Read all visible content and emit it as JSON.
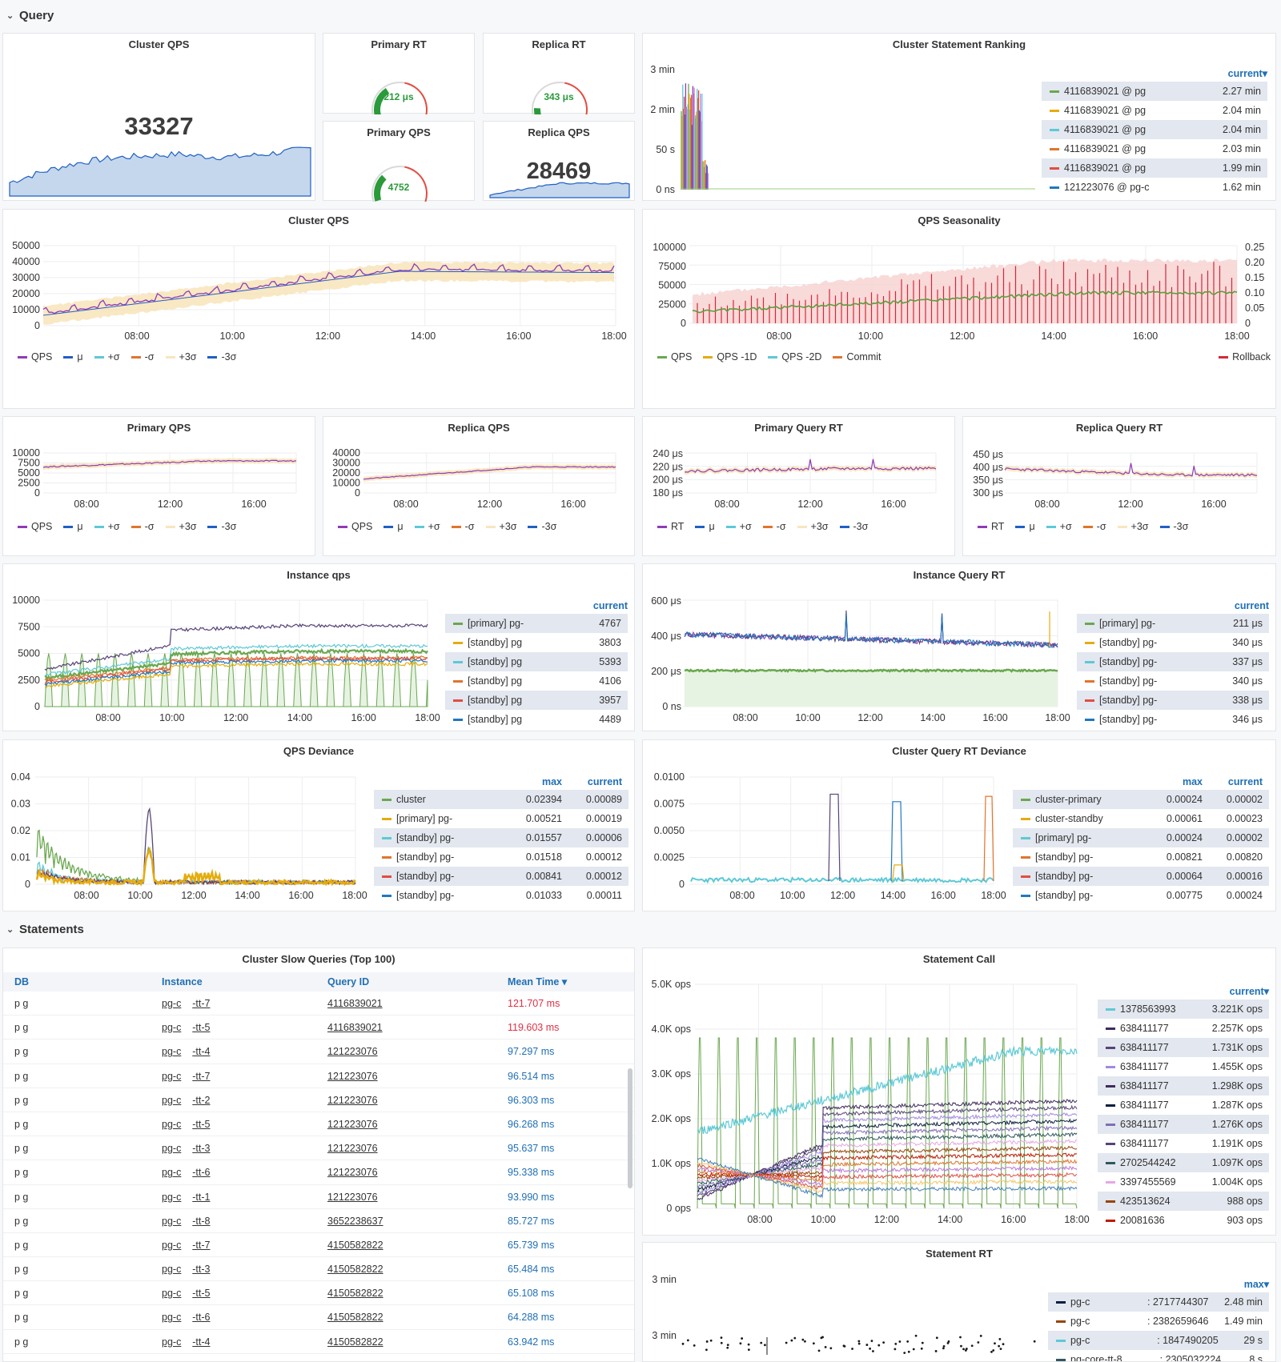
{
  "rows": {
    "query": "Query",
    "statements": "Statements"
  },
  "stat_cluster_qps": {
    "title": "Cluster QPS",
    "value": "33327"
  },
  "gauge_primary_rt": {
    "title": "Primary RT",
    "value": "212 μs",
    "level": 0.35
  },
  "gauge_replica_rt": {
    "title": "Replica RT",
    "value": "343 μs",
    "level": 0.1
  },
  "gauge_primary_qps": {
    "title": "Primary QPS",
    "value": "4752",
    "level": 0.3
  },
  "stat_replica_qps": {
    "title": "Replica QPS",
    "value": "28469"
  },
  "ranking": {
    "title": "Cluster Statement Ranking",
    "header": "current▾",
    "yticks": [
      "3 min",
      "2 min",
      "50 s",
      "0 ns"
    ],
    "rows": [
      {
        "name": "4116839021 @ pg",
        "value": "2.27 min",
        "color": "#6aa84f"
      },
      {
        "name": "4116839021 @ pg",
        "value": "2.04 min",
        "color": "#e5ac0e"
      },
      {
        "name": "4116839021 @ pg",
        "value": "2.04 min",
        "color": "#5dc9d6"
      },
      {
        "name": "4116839021 @ pg",
        "value": "2.03 min",
        "color": "#e0752d"
      },
      {
        "name": "4116839021 @ pg",
        "value": "1.99 min",
        "color": "#e24d42"
      },
      {
        "name": "121223076 @ pg-c",
        "value": "1.62 min",
        "color": "#1f78c1"
      }
    ]
  },
  "cluster_qps_chart": {
    "title": "Cluster QPS",
    "yticks": [
      "50000",
      "40000",
      "30000",
      "20000",
      "10000",
      "0"
    ],
    "xticks": [
      "08:00",
      "10:00",
      "12:00",
      "14:00",
      "16:00",
      "18:00"
    ],
    "legend": [
      {
        "name": "QPS",
        "color": "#8f3bb8"
      },
      {
        "name": "μ",
        "color": "#1f60c4"
      },
      {
        "name": "+σ",
        "color": "#5dc9d6"
      },
      {
        "name": "-σ",
        "color": "#e0752d"
      },
      {
        "name": "+3σ",
        "color": "#f7e6bf"
      },
      {
        "name": "-3σ",
        "color": "#1f60c4"
      }
    ]
  },
  "seasonality": {
    "title": "QPS Seasonality",
    "yticks_left": [
      "100000",
      "75000",
      "50000",
      "25000",
      "0"
    ],
    "yticks_right": [
      "0.25",
      "0.20",
      "0.15",
      "0.10",
      "0.05",
      "0"
    ],
    "xticks": [
      "08:00",
      "10:00",
      "12:00",
      "14:00",
      "16:00",
      "18:00"
    ],
    "legend": [
      {
        "name": "QPS",
        "color": "#6aa84f"
      },
      {
        "name": "QPS -1D",
        "color": "#e5ac0e"
      },
      {
        "name": "QPS -2D",
        "color": "#5dc9d6"
      },
      {
        "name": "Commit",
        "color": "#e0752d"
      }
    ],
    "legend_right": {
      "name": "Rollback",
      "color": "#d6283a"
    }
  },
  "primary_qps": {
    "title": "Primary QPS",
    "yticks": [
      "10000",
      "7500",
      "5000",
      "2500",
      "0"
    ],
    "xticks": [
      "08:00",
      "12:00",
      "16:00"
    ],
    "legend": [
      {
        "name": "QPS",
        "color": "#8f3bb8"
      },
      {
        "name": "μ",
        "color": "#1f60c4"
      },
      {
        "name": "+σ",
        "color": "#5dc9d6"
      },
      {
        "name": "-σ",
        "color": "#e0752d"
      },
      {
        "name": "+3σ",
        "color": "#f7e6bf"
      },
      {
        "name": "-3σ",
        "color": "#1f60c4"
      }
    ]
  },
  "replica_qps": {
    "title": "Replica QPS",
    "yticks": [
      "40000",
      "30000",
      "20000",
      "10000",
      "0"
    ],
    "xticks": [
      "08:00",
      "12:00",
      "16:00"
    ],
    "legend": [
      {
        "name": "QPS",
        "color": "#8f3bb8"
      },
      {
        "name": "μ",
        "color": "#1f60c4"
      },
      {
        "name": "+σ",
        "color": "#5dc9d6"
      },
      {
        "name": "-σ",
        "color": "#e0752d"
      },
      {
        "name": "+3σ",
        "color": "#f7e6bf"
      },
      {
        "name": "-3σ",
        "color": "#1f60c4"
      }
    ]
  },
  "primary_rt": {
    "title": "Primary Query RT",
    "yticks": [
      "240 μs",
      "220 μs",
      "200 μs",
      "180 μs"
    ],
    "xticks": [
      "08:00",
      "12:00",
      "16:00"
    ],
    "legend": [
      {
        "name": "RT",
        "color": "#8f3bb8"
      },
      {
        "name": "μ",
        "color": "#1f60c4"
      },
      {
        "name": "+σ",
        "color": "#5dc9d6"
      },
      {
        "name": "-σ",
        "color": "#e0752d"
      },
      {
        "name": "+3σ",
        "color": "#f7e6bf"
      },
      {
        "name": "-3σ",
        "color": "#1f60c4"
      }
    ]
  },
  "replica_rt": {
    "title": "Replica Query RT",
    "yticks": [
      "450 μs",
      "400 μs",
      "350 μs",
      "300 μs"
    ],
    "xticks": [
      "08:00",
      "12:00",
      "16:00"
    ],
    "legend": [
      {
        "name": "RT",
        "color": "#8f3bb8"
      },
      {
        "name": "μ",
        "color": "#1f60c4"
      },
      {
        "name": "+σ",
        "color": "#5dc9d6"
      },
      {
        "name": "-σ",
        "color": "#e0752d"
      },
      {
        "name": "+3σ",
        "color": "#f7e6bf"
      },
      {
        "name": "-3σ",
        "color": "#1f60c4"
      }
    ]
  },
  "instance_qps": {
    "title": "Instance qps",
    "header": "current",
    "yticks": [
      "10000",
      "7500",
      "5000",
      "2500",
      "0"
    ],
    "xticks": [
      "08:00",
      "10:00",
      "12:00",
      "14:00",
      "16:00",
      "18:00"
    ],
    "rows": [
      {
        "name": "[primary] pg-",
        "value": "4767",
        "color": "#6aa84f"
      },
      {
        "name": "[standby] pg",
        "value": "3803",
        "color": "#e5ac0e"
      },
      {
        "name": "[standby] pg",
        "value": "5393",
        "color": "#5dc9d6"
      },
      {
        "name": "[standby] pg",
        "value": "4106",
        "color": "#e0752d"
      },
      {
        "name": "[standby] pg",
        "value": "3957",
        "color": "#e24d42"
      },
      {
        "name": "[standby] pg",
        "value": "4489",
        "color": "#1f78c1"
      }
    ]
  },
  "instance_rt": {
    "title": "Instance Query RT",
    "header": "current",
    "yticks": [
      "600 μs",
      "400 μs",
      "200 μs",
      "0 ns"
    ],
    "xticks": [
      "08:00",
      "10:00",
      "12:00",
      "14:00",
      "16:00",
      "18:00"
    ],
    "rows": [
      {
        "name": "[primary] pg-",
        "value": "211 μs",
        "color": "#6aa84f"
      },
      {
        "name": "[standby] pg-",
        "value": "340 μs",
        "color": "#e5ac0e"
      },
      {
        "name": "[standby] pg-",
        "value": "337 μs",
        "color": "#5dc9d6"
      },
      {
        "name": "[standby] pg-",
        "value": "340 μs",
        "color": "#e0752d"
      },
      {
        "name": "[standby] pg-",
        "value": "338 μs",
        "color": "#e24d42"
      },
      {
        "name": "[standby] pg-",
        "value": "346 μs",
        "color": "#1f78c1"
      }
    ]
  },
  "qps_deviance": {
    "title": "QPS Deviance",
    "header_max": "max",
    "header_current": "current",
    "yticks": [
      "0.04",
      "0.03",
      "0.02",
      "0.01",
      "0"
    ],
    "xticks": [
      "08:00",
      "10:00",
      "12:00",
      "14:00",
      "16:00",
      "18:00"
    ],
    "rows": [
      {
        "name": "cluster",
        "max": "0.02394",
        "current": "0.00089",
        "color": "#6aa84f"
      },
      {
        "name": "[primary] pg-",
        "max": "0.00521",
        "current": "0.00019",
        "color": "#e5ac0e"
      },
      {
        "name": "[standby] pg-",
        "max": "0.01557",
        "current": "0.00006",
        "color": "#5dc9d6"
      },
      {
        "name": "[standby] pg-",
        "max": "0.01518",
        "current": "0.00012",
        "color": "#e0752d"
      },
      {
        "name": "[standby] pg-",
        "max": "0.00841",
        "current": "0.00012",
        "color": "#e24d42"
      },
      {
        "name": "[standby] pg-",
        "max": "0.01033",
        "current": "0.00011",
        "color": "#1f78c1"
      }
    ]
  },
  "rt_deviance": {
    "title": "Cluster Query RT Deviance",
    "header_max": "max",
    "header_current": "current",
    "yticks": [
      "0.0100",
      "0.0075",
      "0.0050",
      "0.0025",
      "0"
    ],
    "xticks": [
      "08:00",
      "10:00",
      "12:00",
      "14:00",
      "16:00",
      "18:00"
    ],
    "rows": [
      {
        "name": "cluster-primary",
        "max": "0.00024",
        "current": "0.00002",
        "color": "#6aa84f"
      },
      {
        "name": "cluster-standby",
        "max": "0.00061",
        "current": "0.00023",
        "color": "#e5ac0e"
      },
      {
        "name": "[primary] pg-",
        "max": "0.00024",
        "current": "0.00002",
        "color": "#5dc9d6"
      },
      {
        "name": "[standby] pg-",
        "max": "0.00821",
        "current": "0.00820",
        "color": "#e0752d"
      },
      {
        "name": "[standby] pg-",
        "max": "0.00064",
        "current": "0.00016",
        "color": "#e24d42"
      },
      {
        "name": "[standby] pg-",
        "max": "0.00775",
        "current": "0.00024",
        "color": "#1f78c1"
      }
    ]
  },
  "slow_queries": {
    "title": "Cluster Slow Queries (Top 100)",
    "headers": {
      "db": "DB",
      "instance": "Instance",
      "query_id": "Query ID",
      "mean_time": "Mean Time ▾"
    },
    "rows": [
      {
        "db": "p    g",
        "inst_a": "pg-c",
        "inst_b": "-tt-7",
        "qid": "4116839021",
        "time": "121.707 ms",
        "hot": true
      },
      {
        "db": "p    g",
        "inst_a": "pg-c",
        "inst_b": "-tt-5",
        "qid": "4116839021",
        "time": "119.603 ms",
        "hot": true
      },
      {
        "db": "p    g",
        "inst_a": "pg-c",
        "inst_b": "-tt-4",
        "qid": "121223076",
        "time": "97.297 ms",
        "hot": false
      },
      {
        "db": "p    g",
        "inst_a": "pg-c",
        "inst_b": "-tt-7",
        "qid": "121223076",
        "time": "96.514 ms",
        "hot": false
      },
      {
        "db": "p    g",
        "inst_a": "pg-c",
        "inst_b": "-tt-2",
        "qid": "121223076",
        "time": "96.303 ms",
        "hot": false
      },
      {
        "db": "p    g",
        "inst_a": "pg-c",
        "inst_b": "-tt-5",
        "qid": "121223076",
        "time": "96.268 ms",
        "hot": false
      },
      {
        "db": "p    g",
        "inst_a": "pg-c",
        "inst_b": "-tt-3",
        "qid": "121223076",
        "time": "95.637 ms",
        "hot": false
      },
      {
        "db": "p    g",
        "inst_a": "pg-c",
        "inst_b": "-tt-6",
        "qid": "121223076",
        "time": "95.338 ms",
        "hot": false
      },
      {
        "db": "p    g",
        "inst_a": "pg-c",
        "inst_b": "-tt-1",
        "qid": "121223076",
        "time": "93.990 ms",
        "hot": false
      },
      {
        "db": "p    g",
        "inst_a": "pg-c",
        "inst_b": "-tt-8",
        "qid": "3652238637",
        "time": "85.727 ms",
        "hot": false
      },
      {
        "db": "p    g",
        "inst_a": "pg-c",
        "inst_b": "-tt-7",
        "qid": "4150582822",
        "time": "65.739 ms",
        "hot": false
      },
      {
        "db": "p    g",
        "inst_a": "pg-c",
        "inst_b": "-tt-3",
        "qid": "4150582822",
        "time": "65.484 ms",
        "hot": false
      },
      {
        "db": "p    g",
        "inst_a": "pg-c",
        "inst_b": "-tt-5",
        "qid": "4150582822",
        "time": "65.108 ms",
        "hot": false
      },
      {
        "db": "p    g",
        "inst_a": "pg-c",
        "inst_b": "-tt-6",
        "qid": "4150582822",
        "time": "64.288 ms",
        "hot": false
      },
      {
        "db": "p    g",
        "inst_a": "pg-c",
        "inst_b": "-tt-4",
        "qid": "4150582822",
        "time": "63.942 ms",
        "hot": false
      }
    ]
  },
  "statement_call": {
    "title": "Statement Call",
    "header": "current▾",
    "yticks": [
      "5.0K ops",
      "4.0K ops",
      "3.0K ops",
      "2.0K ops",
      "1.0K ops",
      "0 ops"
    ],
    "xticks": [
      "08:00",
      "10:00",
      "12:00",
      "14:00",
      "16:00",
      "18:00"
    ],
    "rows": [
      {
        "name": "1378563993",
        "value": "3.221K ops",
        "color": "#5dc9d6"
      },
      {
        "name": "638411177",
        "value": "2.257K ops",
        "color": "#3f2b5b"
      },
      {
        "name": "638411177",
        "value": "1.731K ops",
        "color": "#584477"
      },
      {
        "name": "638411177",
        "value": "1.455K ops",
        "color": "#a38ae0"
      },
      {
        "name": "638411177",
        "value": "1.298K ops",
        "color": "#3f2b5b"
      },
      {
        "name": "638411177",
        "value": "1.287K ops",
        "color": "#0a1f3d"
      },
      {
        "name": "638411177",
        "value": "1.276K ops",
        "color": "#806eb7"
      },
      {
        "name": "638411177",
        "value": "1.191K ops",
        "color": "#584477"
      },
      {
        "name": "2702544242",
        "value": "1.097K ops",
        "color": "#2f575e"
      },
      {
        "name": "3397455569",
        "value": "1.004K ops",
        "color": "#e5a8e2"
      },
      {
        "name": "423513624",
        "value": "988 ops",
        "color": "#99440a"
      },
      {
        "name": "20081636",
        "value": "903 ops",
        "color": "#bf1b00"
      }
    ]
  },
  "statement_rt": {
    "title": "Statement RT",
    "header": "max▾",
    "yticks": [
      "3 min",
      "3 min"
    ],
    "rows": [
      {
        "name": "pg-c",
        "id": ": 2717744307",
        "value": "2.48 min",
        "color": "#0a1f3d"
      },
      {
        "name": "pg-c",
        "id": ": 2382659646",
        "value": "1.49 min",
        "color": "#99440a"
      },
      {
        "name": "pg-c",
        "id": ": 1847490205",
        "value": "29 s",
        "color": "#5dc9d6"
      },
      {
        "name": "pg-core-tt-8",
        "id": ": 2305032224",
        "value": "8 s",
        "color": "#2f575e"
      }
    ]
  }
}
